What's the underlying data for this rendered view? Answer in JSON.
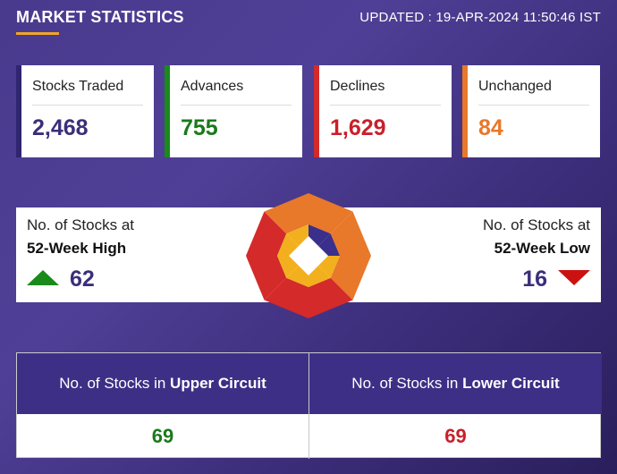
{
  "header": {
    "title": "MARKET STATISTICS",
    "updated": "UPDATED : 19-APR-2024 11:50:46 IST"
  },
  "stats": [
    {
      "label": "Stocks Traded",
      "value": "2,468",
      "accent": "#2f2570",
      "value_color": "#3a2f7a"
    },
    {
      "label": "Advances",
      "value": "755",
      "accent": "#1a8a1a",
      "value_color": "#1a7a1a"
    },
    {
      "label": "Declines",
      "value": "1,629",
      "accent": "#d42a2a",
      "value_color": "#c8202a"
    },
    {
      "label": "Unchanged",
      "value": "84",
      "accent": "#e8782a",
      "value_color": "#e8782a"
    }
  ],
  "week52": {
    "high": {
      "line1": "No. of Stocks at",
      "line2": "52-Week High",
      "value": "62",
      "arrow_color": "#1a8a1a"
    },
    "low": {
      "line1": "No. of Stocks at",
      "line2": "52-Week Low",
      "value": "16",
      "arrow_color": "#cc1111"
    }
  },
  "circuit": {
    "upper": {
      "prefix": "No. of Stocks in ",
      "bold": "Upper Circuit",
      "value": "69",
      "value_color": "#1a7a1a"
    },
    "lower": {
      "prefix": "No. of Stocks in ",
      "bold": "Lower Circuit",
      "value": "69",
      "value_color": "#c8202a"
    }
  },
  "colors": {
    "header_bg": "#3d2f86",
    "underline": "#f0a52a"
  }
}
